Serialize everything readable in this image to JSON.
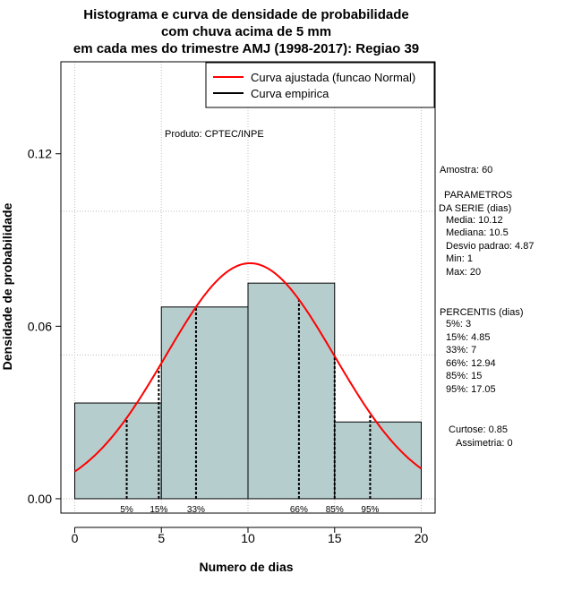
{
  "chart_data": {
    "type": "bar",
    "title_lines": [
      "Histograma e curva de densidade de probabilidade",
      "com chuva acima de 5 mm",
      "em cada mes do trimestre AMJ (1998-2017): Regiao 39"
    ],
    "xlabel": "Numero de dias",
    "ylabel": "Densidade de probabilidade",
    "xlim": [
      -0.8,
      20.8
    ],
    "ylim": [
      -0.005,
      0.152
    ],
    "x_ticks": [
      0,
      5,
      10,
      15,
      20
    ],
    "x_tick_labels": [
      "0",
      "5",
      "10",
      "15",
      "20"
    ],
    "y_ticks": [
      0.0,
      0.06,
      0.12
    ],
    "y_tick_labels": [
      "0.00",
      "0.06",
      "0.12"
    ],
    "grid_x": [
      0,
      5,
      10,
      15,
      20
    ],
    "grid_y": [
      0.0,
      0.05,
      0.1
    ],
    "bins": [
      {
        "from": 0,
        "to": 5,
        "density": 0.0333
      },
      {
        "from": 5,
        "to": 10,
        "density": 0.0667
      },
      {
        "from": 10,
        "to": 15,
        "density": 0.075
      },
      {
        "from": 15,
        "to": 20,
        "density": 0.0267
      }
    ],
    "bar_color": "#b6cdcd",
    "normal_curve": {
      "mean": 10.12,
      "sd": 4.87,
      "color": "#ff0000",
      "range": [
        0,
        20
      ]
    },
    "percentiles": [
      {
        "label": "5%",
        "value": 3
      },
      {
        "label": "15%",
        "value": 4.85
      },
      {
        "label": "33%",
        "value": 7
      },
      {
        "label": "66%",
        "value": 12.94
      },
      {
        "label": "85%",
        "value": 15
      },
      {
        "label": "95%",
        "value": 17.05
      }
    ],
    "legend": {
      "position": "top-right",
      "entries": [
        {
          "label": "Curva ajustada (funcao Normal)",
          "color": "#ff0000"
        },
        {
          "label": "Curva empirica",
          "color": "#000000"
        }
      ]
    },
    "annotations": {
      "produto": "Produto: CPTEC/INPE",
      "amostra": "Amostra: 60",
      "parametros_title": [
        " PARAMETROS",
        "DA SERIE (dias)"
      ],
      "parametros": [
        "Media: 10.12",
        "Mediana: 10.5",
        "Desvio padrao: 4.87",
        "Min: 1",
        "Max: 20"
      ],
      "percentis_title": "PERCENTIS (dias)",
      "percentis": [
        "5%: 3",
        "15%: 4.85",
        "33%: 7",
        "66%: 12.94",
        "85%: 15",
        "95%: 17.05"
      ],
      "curtose": "Curtose: 0.85",
      "assimetria": "Assimetria: 0"
    }
  }
}
